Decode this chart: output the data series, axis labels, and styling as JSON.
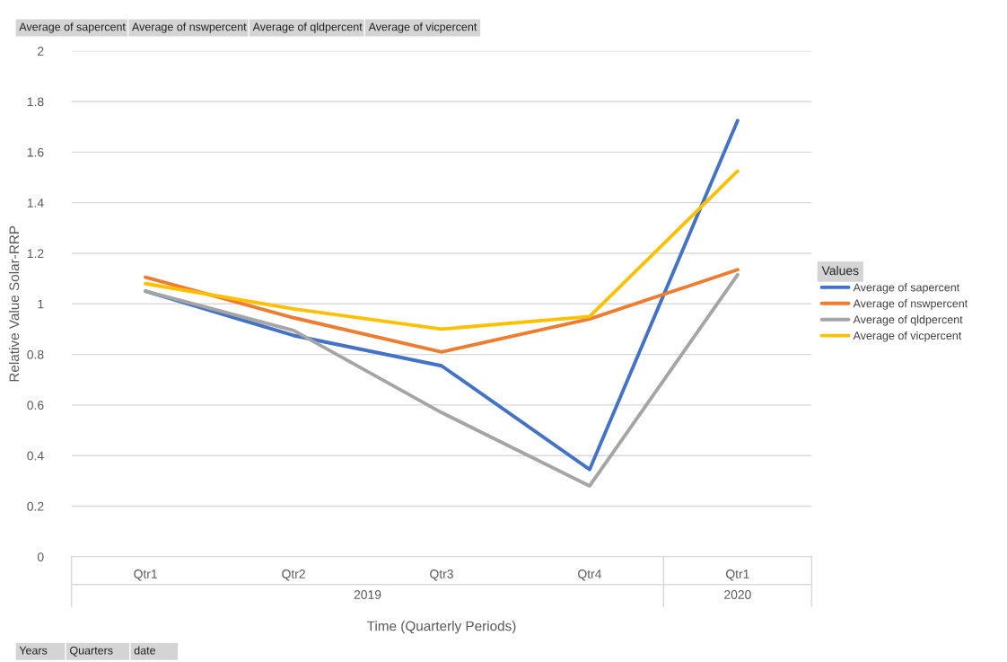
{
  "chart_data": {
    "type": "line",
    "ylabel": "Relative Value Solar-RRP",
    "xlabel": "Time (Quarterly Periods)",
    "legend_title": "Values",
    "categories": [
      "Qtr1",
      "Qtr2",
      "Qtr3",
      "Qtr4",
      "Qtr1"
    ],
    "series": [
      {
        "name": "Average of sapercent",
        "color": "#4472c4",
        "values": [
          1.05,
          0.875,
          0.755,
          0.345,
          1.725
        ]
      },
      {
        "name": "Average of nswpercent",
        "color": "#ed7d31",
        "values": [
          1.105,
          0.945,
          0.81,
          0.94,
          1.135
        ]
      },
      {
        "name": "Average of qldpercent",
        "color": "#a5a5a5",
        "values": [
          1.05,
          0.895,
          0.57,
          0.28,
          1.115
        ]
      },
      {
        "name": "Average of vicpercent",
        "color": "#ffc000",
        "values": [
          1.08,
          0.98,
          0.9,
          0.95,
          1.525
        ]
      }
    ],
    "ylim": [
      0,
      2
    ],
    "yticks": [
      0,
      0.2,
      0.4,
      0.6,
      0.8,
      1,
      1.2,
      1.4,
      1.6,
      1.8,
      2
    ],
    "grid": "y",
    "legend": "right",
    "marker": "none",
    "line_style": "solid",
    "annotations": [
      "2019",
      "2020",
      "Average of sapercent",
      "Average of nswpercent",
      "Average of qldpercent",
      "Average of vicpercent",
      "Years",
      "Quarters",
      "date"
    ]
  }
}
